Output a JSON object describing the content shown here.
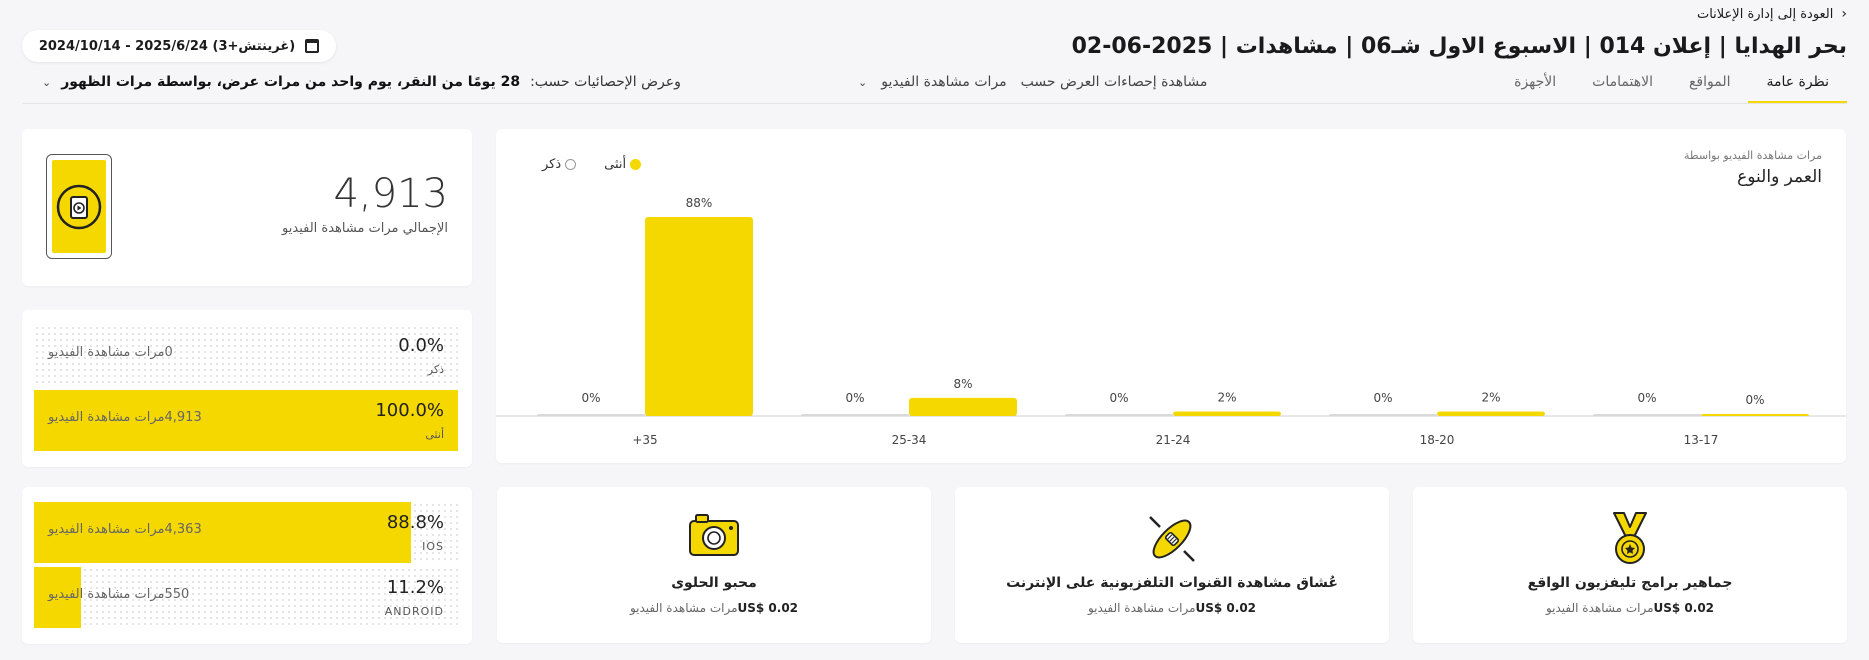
{
  "header": {
    "back_label": "العودة إلى إدارة الإعلانات",
    "title": "بحر الهدايا | إعلان 014 | الاسبوع الاول شـ06 | مشاهدات | 2025-06-02",
    "date_range": "2024/10/14 - 2025/6/24 (غرينتش+3)"
  },
  "tabs": [
    {
      "label": "نظرة عامة",
      "active": true
    },
    {
      "label": "المواقع",
      "active": false
    },
    {
      "label": "الاهتمامات",
      "active": false
    },
    {
      "label": "الأجهزة",
      "active": false
    }
  ],
  "filters": {
    "view_stats_by_label": "مشاهدة إحصاءات العرض حسب",
    "view_stats_by_value": "مرات مشاهدة الفيديو",
    "display_stats_by_label": "وعرض الإحصائيات حسب:",
    "display_stats_by_value": "28 يومًا من النقر، يوم واحد من مرات عرض، بواسطة مرات الظهور"
  },
  "age_gender": {
    "subtitle": "مرات مشاهدة الفيديو بواسطة",
    "title": "العمر والنوع",
    "legend": {
      "female": "أنثى",
      "male": "ذكر"
    }
  },
  "chart_data": {
    "type": "bar",
    "title": "العمر والنوع",
    "categories": [
      "13-17",
      "18-20",
      "21-24",
      "25-34",
      "+35"
    ],
    "series": [
      {
        "name": "أنثى",
        "values": [
          0,
          2,
          2,
          8,
          88
        ],
        "labels": [
          "0%",
          "2%",
          "2%",
          "8%",
          "88%"
        ],
        "color": "#f5d800"
      },
      {
        "name": "ذكر",
        "values": [
          0,
          0,
          0,
          0,
          0
        ],
        "labels": [
          "0%",
          "0%",
          "0%",
          "0%",
          "0%"
        ],
        "color": "#d9d9d9"
      }
    ],
    "ylim": [
      0,
      100
    ],
    "grid": false,
    "legend_position": "top-left"
  },
  "total": {
    "value": "4,913",
    "label": "الإجمالي مرات مشاهدة الفيديو"
  },
  "gender_breakdown": [
    {
      "percent": "0.0%",
      "label": "ذكر",
      "count": "0",
      "metric": "مرات مشاهدة الفيديو",
      "fill": 0.0
    },
    {
      "percent": "100.0%",
      "label": "أنثى",
      "count": "4,913",
      "metric": "مرات مشاهدة الفيديو",
      "fill": 1.0
    }
  ],
  "device_breakdown": [
    {
      "percent": "88.8%",
      "label": "IOS",
      "count": "4,363",
      "metric": "مرات مشاهدة الفيديو",
      "fill": 0.888
    },
    {
      "percent": "11.2%",
      "label": "ANDROID",
      "count": "550",
      "metric": "مرات مشاهدة الفيديو",
      "fill": 0.112
    }
  ],
  "audiences": [
    {
      "title": "جماهير برامج تليفزيون الواقع",
      "cost": "US$ 0.02",
      "metric": "مرات مشاهدة الفيديو",
      "icon": "medal-icon"
    },
    {
      "title": "عُشاق مشاهدة القنوات التلفزيونية على الإنترنت",
      "cost": "US$ 0.02",
      "metric": "مرات مشاهدة الفيديو",
      "icon": "rocket-icon"
    },
    {
      "title": "محبو الحلوى",
      "cost": "US$ 0.02",
      "metric": "مرات مشاهدة الفيديو",
      "icon": "camera-icon"
    }
  ],
  "colors": {
    "accent": "#f5d800",
    "background": "#f6f6f8"
  }
}
